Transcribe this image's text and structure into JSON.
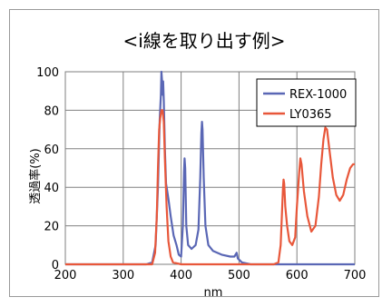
{
  "chart_data": {
    "type": "line",
    "title": "<i線を取り出す例>",
    "xlabel": "nm",
    "ylabel": "透過率(%)",
    "xlim": [
      200,
      700
    ],
    "ylim": [
      0,
      100
    ],
    "xticks": [
      "200",
      "300",
      "400",
      "500",
      "600",
      "700"
    ],
    "yticks": [
      "0",
      "20",
      "40",
      "60",
      "80",
      "100"
    ],
    "grid": true,
    "legend_position": "top-right",
    "series": [
      {
        "name": "REX-1000",
        "color": "#5a67b5",
        "points": [
          [
            200,
            0
          ],
          [
            340,
            0
          ],
          [
            350,
            1
          ],
          [
            356,
            10
          ],
          [
            360,
            40
          ],
          [
            363,
            75
          ],
          [
            365,
            88
          ],
          [
            366,
            100
          ],
          [
            367,
            96
          ],
          [
            368,
            88
          ],
          [
            369,
            95
          ],
          [
            370,
            85
          ],
          [
            372,
            60
          ],
          [
            374,
            42
          ],
          [
            376,
            38
          ],
          [
            378,
            34
          ],
          [
            382,
            25
          ],
          [
            387,
            15
          ],
          [
            392,
            10
          ],
          [
            396,
            5
          ],
          [
            400,
            4
          ],
          [
            403,
            20
          ],
          [
            405,
            48
          ],
          [
            406,
            55
          ],
          [
            407,
            50
          ],
          [
            409,
            20
          ],
          [
            412,
            10
          ],
          [
            418,
            8
          ],
          [
            425,
            10
          ],
          [
            430,
            18
          ],
          [
            433,
            45
          ],
          [
            435,
            68
          ],
          [
            436,
            74
          ],
          [
            437,
            70
          ],
          [
            439,
            45
          ],
          [
            442,
            20
          ],
          [
            447,
            10
          ],
          [
            455,
            7
          ],
          [
            470,
            5
          ],
          [
            485,
            4
          ],
          [
            492,
            4
          ],
          [
            496,
            6
          ],
          [
            498,
            3
          ],
          [
            505,
            1
          ],
          [
            520,
            0
          ],
          [
            700,
            0
          ]
        ]
      },
      {
        "name": "LY0365",
        "color": "#e8573a",
        "points": [
          [
            200,
            0
          ],
          [
            350,
            0
          ],
          [
            355,
            6
          ],
          [
            358,
            25
          ],
          [
            360,
            50
          ],
          [
            362,
            70
          ],
          [
            364,
            76
          ],
          [
            366,
            80
          ],
          [
            368,
            80
          ],
          [
            370,
            74
          ],
          [
            372,
            55
          ],
          [
            375,
            30
          ],
          [
            378,
            12
          ],
          [
            382,
            4
          ],
          [
            386,
            1
          ],
          [
            400,
            0
          ],
          [
            560,
            0
          ],
          [
            568,
            1
          ],
          [
            572,
            10
          ],
          [
            574,
            25
          ],
          [
            576,
            40
          ],
          [
            577,
            44
          ],
          [
            578,
            42
          ],
          [
            580,
            30
          ],
          [
            583,
            20
          ],
          [
            587,
            12
          ],
          [
            592,
            10
          ],
          [
            597,
            14
          ],
          [
            600,
            30
          ],
          [
            604,
            48
          ],
          [
            606,
            55
          ],
          [
            608,
            52
          ],
          [
            612,
            38
          ],
          [
            618,
            25
          ],
          [
            625,
            17
          ],
          [
            632,
            20
          ],
          [
            638,
            35
          ],
          [
            642,
            52
          ],
          [
            646,
            65
          ],
          [
            649,
            71
          ],
          [
            652,
            70
          ],
          [
            656,
            60
          ],
          [
            662,
            45
          ],
          [
            668,
            36
          ],
          [
            674,
            33
          ],
          [
            680,
            36
          ],
          [
            686,
            44
          ],
          [
            692,
            50
          ],
          [
            697,
            52
          ],
          [
            700,
            52
          ]
        ]
      }
    ]
  }
}
